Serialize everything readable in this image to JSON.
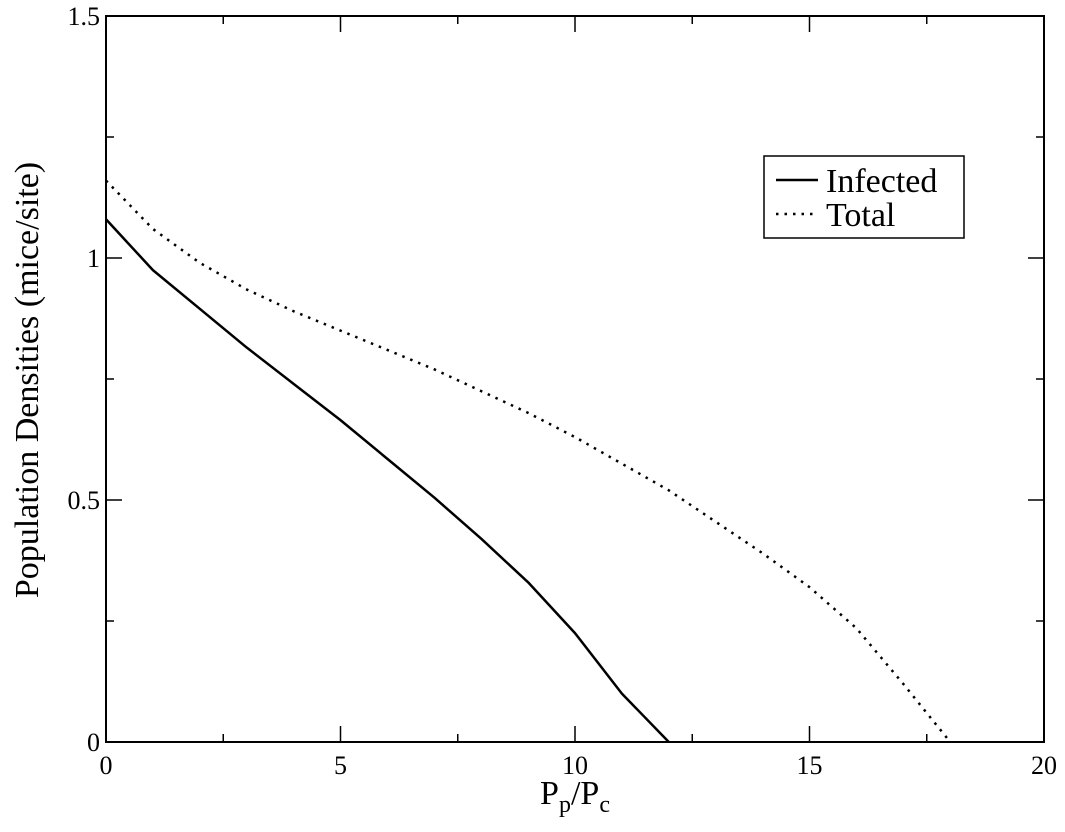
{
  "chart_data": {
    "type": "line",
    "title": "",
    "xlabel": {
      "main": "P",
      "sub1": "p",
      "sep": "/",
      "main2": "P",
      "sub2": "c"
    },
    "ylabel": "Population Densities (mice/site)",
    "xlim": [
      0,
      20
    ],
    "ylim": [
      0,
      1.5
    ],
    "x_ticks": [
      "0",
      "5",
      "10",
      "15",
      "20"
    ],
    "y_ticks": [
      "0",
      "0.5",
      "1",
      "1.5"
    ],
    "grid": false,
    "legend": "top-right",
    "series": [
      {
        "name": "Infected",
        "style": "solid",
        "color": "#000000",
        "x": [
          0,
          1,
          2,
          3,
          4,
          5,
          6,
          7,
          8,
          9,
          10,
          11,
          12
        ],
        "y": [
          1.08,
          0.975,
          0.895,
          0.815,
          0.74,
          0.665,
          0.585,
          0.505,
          0.42,
          0.33,
          0.225,
          0.1,
          0.0
        ]
      },
      {
        "name": "Total",
        "style": "dotted",
        "color": "#000000",
        "x": [
          0,
          1,
          2,
          3,
          4,
          5,
          6,
          7,
          8,
          9,
          10,
          11,
          12,
          13,
          14,
          15,
          16,
          17,
          18
        ],
        "y": [
          1.16,
          1.06,
          0.99,
          0.935,
          0.89,
          0.85,
          0.81,
          0.77,
          0.725,
          0.68,
          0.63,
          0.575,
          0.52,
          0.455,
          0.39,
          0.32,
          0.235,
          0.12,
          0.0
        ]
      }
    ]
  }
}
